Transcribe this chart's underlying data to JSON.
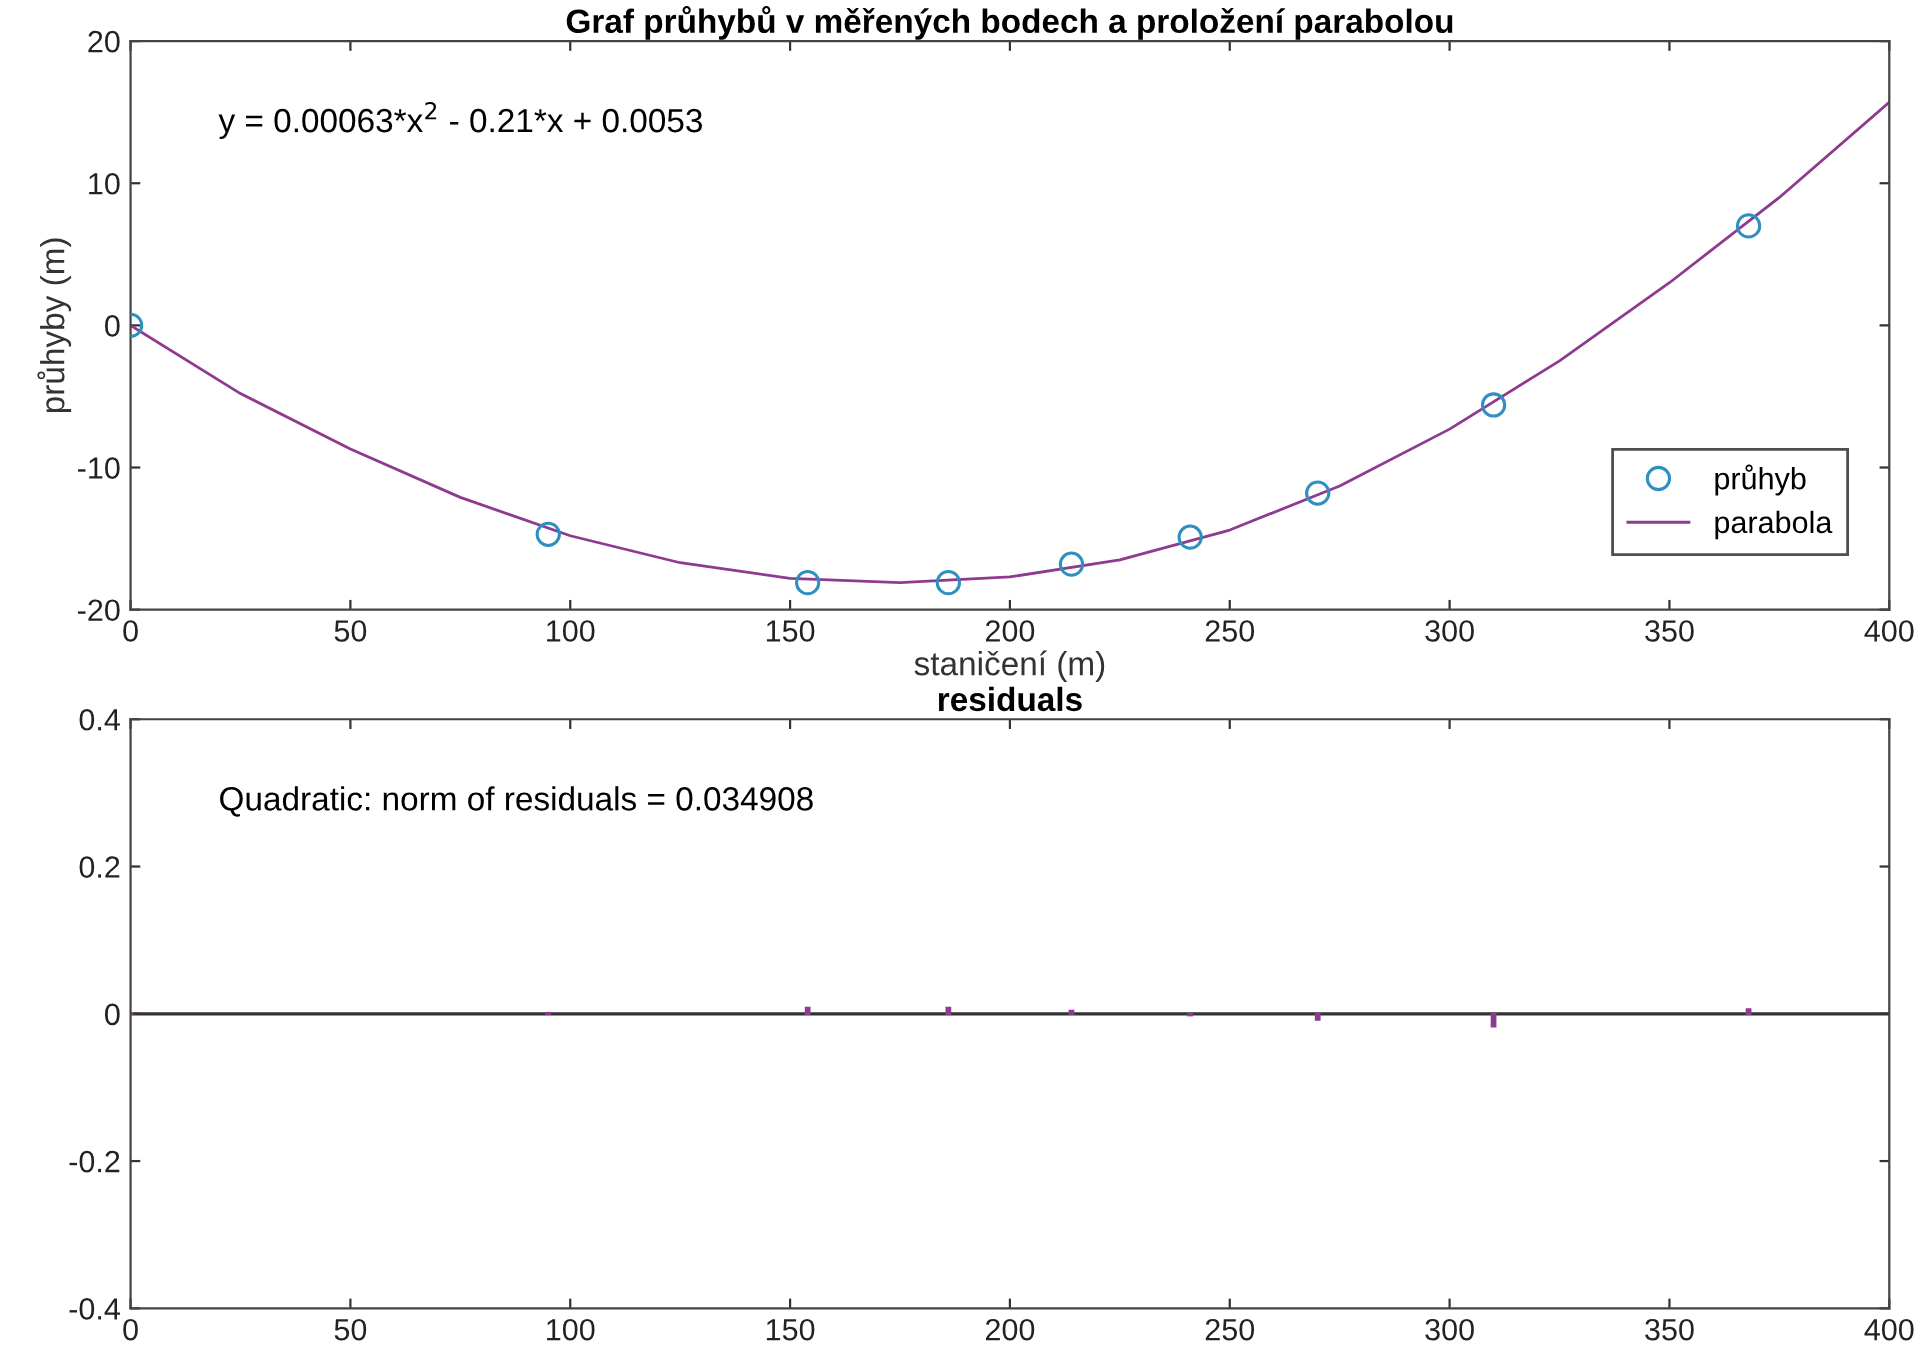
{
  "chart_data": [
    {
      "type": "scatter",
      "title": "Graf průhybů v měřených bodech a proložení parabolou",
      "xlabel": "staničení (m)",
      "ylabel": "průhyby (m)",
      "xlim": [
        0,
        400
      ],
      "xticks": [
        0,
        50,
        100,
        150,
        200,
        250,
        300,
        350,
        400
      ],
      "ylim": [
        -20,
        20
      ],
      "yticks": [
        -20,
        -10,
        0,
        10,
        20
      ],
      "grid": false,
      "legend": "bottom right",
      "annotations": [
        "y = 0.00063*x$^{2}$ - 0.21*x + 0.0053"
      ],
      "series": [
        {
          "name": "průhyb",
          "marker": "circle",
          "color": "#2f8fc0",
          "x": [
            0,
            95,
            154,
            186,
            214,
            241,
            270,
            310,
            368
          ],
          "values": [
            0,
            -14.7,
            -18.1,
            -18.1,
            -16.8,
            -14.9,
            -11.8,
            -5.6,
            7.0
          ]
        },
        {
          "name": "parabola",
          "type": "line",
          "marker": "none",
          "line_style": "solid",
          "color": "#8e3a8e",
          "x": [
            0,
            25,
            50,
            75,
            100,
            125,
            150,
            175,
            200,
            225,
            250,
            275,
            300,
            325,
            350,
            375,
            400
          ],
          "values": [
            0,
            -4.8,
            -8.7,
            -12.1,
            -14.8,
            -16.7,
            -17.8,
            -18.1,
            -17.7,
            -16.5,
            -14.4,
            -11.3,
            -7.3,
            -2.5,
            3.0,
            9.0,
            15.7
          ]
        }
      ]
    },
    {
      "type": "bar",
      "title": "residuals",
      "xlim": [
        0,
        400
      ],
      "xticks": [
        0,
        50,
        100,
        150,
        200,
        250,
        300,
        350,
        400
      ],
      "ylim": [
        -0.4,
        0.4
      ],
      "yticks": [
        -0.4,
        -0.2,
        0,
        0.2,
        0.4
      ],
      "grid": false,
      "legend": false,
      "annotations": [
        "Quadratic: norm of residuals = 0.034908"
      ],
      "ref_lines": [
        {
          "axis": "y",
          "value": 0,
          "color": "#333333"
        }
      ],
      "series": [
        {
          "color": "#8e3a8e",
          "x": [
            0,
            95,
            154,
            186,
            214,
            241,
            270,
            310,
            368
          ],
          "values": [
            0.001,
            0.001,
            0.008,
            0.008,
            0.004,
            -0.002,
            -0.008,
            -0.017,
            0.006
          ]
        }
      ]
    }
  ]
}
